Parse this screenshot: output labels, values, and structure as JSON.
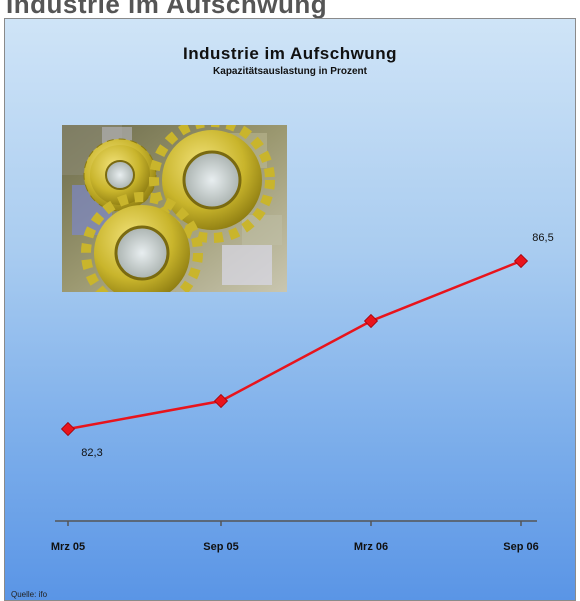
{
  "header": {
    "text": "Industrie im Aufschwung"
  },
  "image": {
    "icon": "gears-icon"
  },
  "chart_data": {
    "type": "line",
    "title": "Industrie im Aufschwung",
    "subtitle": "Kapazitätsauslastung in Prozent",
    "categories": [
      "Mrz 05",
      "Sep 05",
      "Mrz 06",
      "Sep 06"
    ],
    "series": [
      {
        "values": [
          82.3,
          83.0,
          85.0,
          86.5
        ],
        "color": "#e8141c"
      }
    ],
    "data_labels": [
      {
        "index": 0,
        "text": "82,3",
        "position": "below"
      },
      {
        "index": 3,
        "text": "86,5",
        "position": "above"
      }
    ],
    "ylim": [
      80,
      90
    ],
    "grid": false,
    "legend": "none"
  },
  "footer": {
    "source": "Quelle: ifo"
  }
}
